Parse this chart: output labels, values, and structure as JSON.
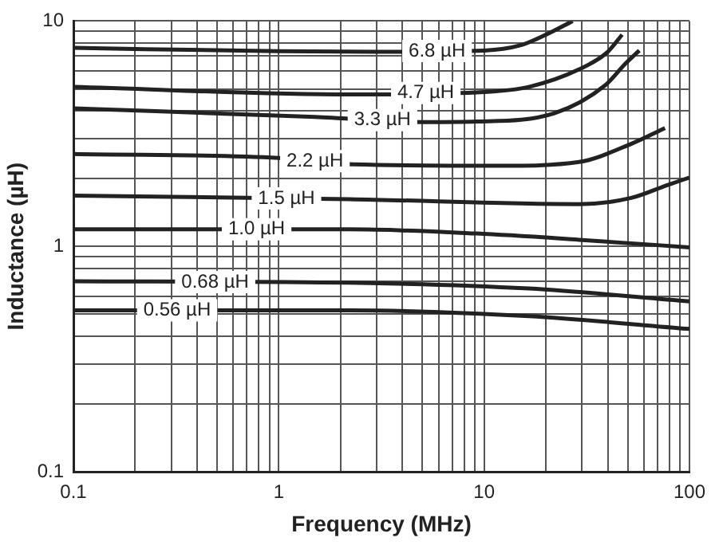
{
  "chart_data": {
    "type": "line",
    "xlabel": "Frequency (MHz)",
    "ylabel": "Inductance (µH)",
    "log": "xy",
    "grid": true,
    "legend": false,
    "marker": "none",
    "line_style": "solid",
    "xlim": [
      0.1,
      100
    ],
    "ylim": [
      0.1,
      10
    ],
    "xticks": [
      0.1,
      {
        "value": 0.2,
        "label": null
      },
      {
        "value": 0.3,
        "label": null
      },
      {
        "value": 0.4,
        "label": null
      },
      {
        "value": 0.5,
        "label": null
      },
      {
        "value": 0.6,
        "label": null
      },
      {
        "value": 0.7,
        "label": null
      },
      {
        "value": 0.8,
        "label": null
      },
      {
        "value": 0.9,
        "label": null
      },
      1,
      {
        "value": 2,
        "label": null
      },
      {
        "value": 3,
        "label": null
      },
      {
        "value": 4,
        "label": null
      },
      {
        "value": 5,
        "label": null
      },
      {
        "value": 6,
        "label": null
      },
      {
        "value": 7,
        "label": null
      },
      {
        "value": 8,
        "label": null
      },
      {
        "value": 9,
        "label": null
      },
      10,
      {
        "value": 20,
        "label": null
      },
      {
        "value": 30,
        "label": null
      },
      {
        "value": 40,
        "label": null
      },
      {
        "value": 50,
        "label": null
      },
      {
        "value": 60,
        "label": null
      },
      {
        "value": 70,
        "label": null
      },
      {
        "value": 80,
        "label": null
      },
      {
        "value": 90,
        "label": null
      },
      100
    ],
    "yticks": [
      0.1,
      {
        "value": 0.2,
        "label": null
      },
      {
        "value": 0.3,
        "label": null
      },
      {
        "value": 0.4,
        "label": null
      },
      {
        "value": 0.5,
        "label": null
      },
      {
        "value": 0.6,
        "label": null
      },
      {
        "value": 0.7,
        "label": null
      },
      {
        "value": 0.8,
        "label": null
      },
      {
        "value": 0.9,
        "label": null
      },
      1,
      {
        "value": 2,
        "label": null
      },
      {
        "value": 3,
        "label": null
      },
      {
        "value": 4,
        "label": null
      },
      {
        "value": 5,
        "label": null
      },
      {
        "value": 6,
        "label": null
      },
      {
        "value": 7,
        "label": null
      },
      {
        "value": 8,
        "label": null
      },
      {
        "value": 9,
        "label": null
      },
      10
    ],
    "series": [
      {
        "name": "6.8 µH",
        "color": "#222222",
        "x": [
          0.1,
          1,
          3,
          10,
          15,
          20,
          27
        ],
        "values": [
          7.6,
          7.35,
          7.3,
          7.4,
          7.8,
          8.7,
          10
        ]
      },
      {
        "name": "4.7 µH",
        "color": "#222222",
        "x": [
          0.1,
          2.2,
          10,
          16.5,
          29,
          40,
          47
        ],
        "values": [
          5.1,
          4.72,
          4.84,
          5.1,
          6.1,
          7.3,
          8.7
        ]
      },
      {
        "name": "3.3 µH",
        "color": "#222222",
        "x": [
          0.1,
          1.5,
          5.2,
          9.2,
          22,
          39,
          49,
          57
        ],
        "values": [
          4.1,
          3.75,
          3.56,
          3.58,
          3.9,
          5.2,
          6.5,
          7.4
        ]
      },
      {
        "name": "2.2 µH",
        "color": "#222222",
        "x": [
          0.1,
          1,
          2.3,
          12,
          29,
          52,
          76
        ],
        "values": [
          2.57,
          2.47,
          2.31,
          2.28,
          2.37,
          2.85,
          3.35
        ]
      },
      {
        "name": "1.5 µH",
        "color": "#222222",
        "x": [
          0.1,
          2.2,
          29,
          52,
          78,
          100
        ],
        "values": [
          1.68,
          1.62,
          1.54,
          1.64,
          1.87,
          2.02
        ]
      },
      {
        "name": "1.0 µH",
        "color": "#222222",
        "x": [
          0.1,
          2.2,
          9.2,
          29,
          100
        ],
        "values": [
          1.19,
          1.19,
          1.14,
          1.07,
          0.99
        ]
      },
      {
        "name": "0.68 µH",
        "color": "#222222",
        "x": [
          0.1,
          2.2,
          16.5,
          100
        ],
        "values": [
          0.7,
          0.69,
          0.65,
          0.57
        ]
      },
      {
        "name": "0.56 µH",
        "color": "#222222",
        "x": [
          0.1,
          2.2,
          16.5,
          100
        ],
        "values": [
          0.52,
          0.52,
          0.49,
          0.43
        ]
      }
    ]
  }
}
